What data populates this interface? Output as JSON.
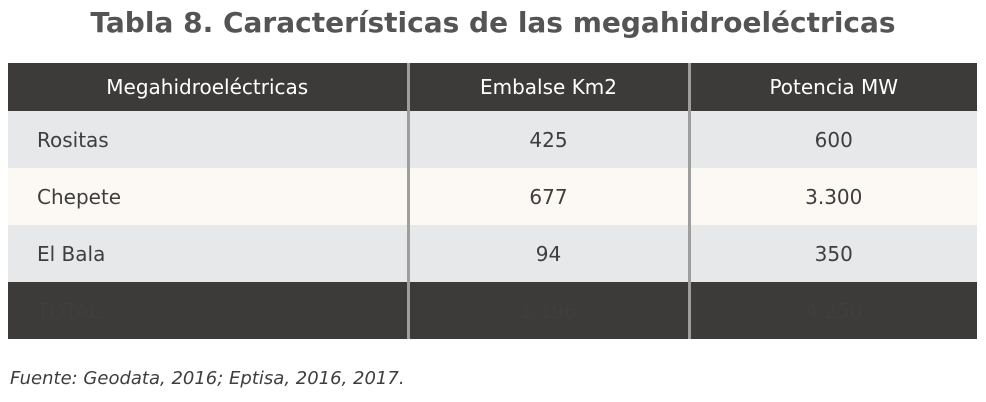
{
  "title": "Tabla 8. Características de las megahidroeléctricas",
  "table": {
    "headers": [
      "Megahidroeléctricas",
      "Embalse Km2",
      "Potencia MW"
    ],
    "rows": [
      [
        "Rositas",
        "425",
        "600"
      ],
      [
        "Chepete",
        "677",
        "3.300"
      ],
      [
        "El Bala",
        "94",
        "350"
      ]
    ],
    "total": [
      "TOTAL",
      "1.196",
      "4.250"
    ]
  },
  "source": "Fuente: Geodata, 2016; Eptisa, 2016, 2017.",
  "colors": {
    "header_bg": "#3c3b3a",
    "row_gray": "#e7e8e9",
    "row_cream": "#fcf8f3",
    "title_text": "#545454"
  }
}
